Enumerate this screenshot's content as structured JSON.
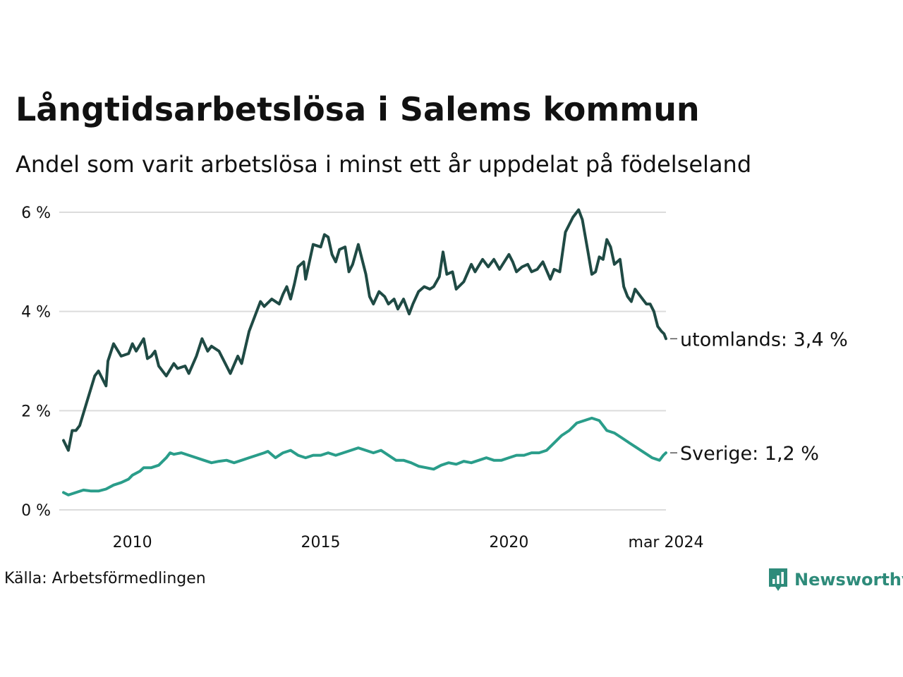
{
  "chart_data": {
    "type": "line",
    "title": "Långtidsarbetslösa i Salems kommun",
    "subtitle": "Andel som varit arbetslösa i minst ett år uppdelat på födelseland",
    "xlabel": "",
    "ylabel": "",
    "x_start": 2008.17,
    "x_end": 2024.17,
    "x_ticks": [
      {
        "value": 2010,
        "label": "2010"
      },
      {
        "value": 2015,
        "label": "2015"
      },
      {
        "value": 2020,
        "label": "2020"
      },
      {
        "value": 2024.17,
        "label": "mar 2024"
      }
    ],
    "ylim": [
      0,
      6
    ],
    "y_ticks": [
      {
        "value": 0,
        "label": "0 %"
      },
      {
        "value": 2,
        "label": "2 %"
      },
      {
        "value": 4,
        "label": "4 %"
      },
      {
        "value": 6,
        "label": "6 %"
      }
    ],
    "grid": true,
    "series": [
      {
        "name": "utomlands",
        "end_label": "utomlands: 3,4 %",
        "color": "#1f4a44",
        "points": [
          [
            2008.17,
            1.4
          ],
          [
            2008.3,
            1.2
          ],
          [
            2008.4,
            1.6
          ],
          [
            2008.5,
            1.6
          ],
          [
            2008.6,
            1.7
          ],
          [
            2008.8,
            2.2
          ],
          [
            2009.0,
            2.7
          ],
          [
            2009.1,
            2.8
          ],
          [
            2009.3,
            2.5
          ],
          [
            2009.35,
            3.0
          ],
          [
            2009.5,
            3.35
          ],
          [
            2009.7,
            3.1
          ],
          [
            2009.9,
            3.15
          ],
          [
            2010.0,
            3.35
          ],
          [
            2010.1,
            3.2
          ],
          [
            2010.3,
            3.45
          ],
          [
            2010.4,
            3.05
          ],
          [
            2010.5,
            3.1
          ],
          [
            2010.6,
            3.2
          ],
          [
            2010.7,
            2.9
          ],
          [
            2010.9,
            2.7
          ],
          [
            2011.1,
            2.95
          ],
          [
            2011.2,
            2.85
          ],
          [
            2011.4,
            2.9
          ],
          [
            2011.5,
            2.75
          ],
          [
            2011.7,
            3.1
          ],
          [
            2011.85,
            3.45
          ],
          [
            2012.0,
            3.2
          ],
          [
            2012.1,
            3.3
          ],
          [
            2012.3,
            3.2
          ],
          [
            2012.6,
            2.75
          ],
          [
            2012.8,
            3.1
          ],
          [
            2012.9,
            2.95
          ],
          [
            2013.1,
            3.6
          ],
          [
            2013.3,
            4.0
          ],
          [
            2013.4,
            4.2
          ],
          [
            2013.5,
            4.1
          ],
          [
            2013.7,
            4.25
          ],
          [
            2013.9,
            4.15
          ],
          [
            2014.0,
            4.35
          ],
          [
            2014.1,
            4.5
          ],
          [
            2014.2,
            4.25
          ],
          [
            2014.3,
            4.55
          ],
          [
            2014.4,
            4.9
          ],
          [
            2014.55,
            5.0
          ],
          [
            2014.6,
            4.65
          ],
          [
            2014.8,
            5.35
          ],
          [
            2015.0,
            5.3
          ],
          [
            2015.1,
            5.55
          ],
          [
            2015.2,
            5.5
          ],
          [
            2015.3,
            5.15
          ],
          [
            2015.4,
            5.0
          ],
          [
            2015.5,
            5.25
          ],
          [
            2015.65,
            5.3
          ],
          [
            2015.75,
            4.8
          ],
          [
            2015.85,
            4.95
          ],
          [
            2016.0,
            5.35
          ],
          [
            2016.2,
            4.75
          ],
          [
            2016.3,
            4.3
          ],
          [
            2016.4,
            4.15
          ],
          [
            2016.55,
            4.4
          ],
          [
            2016.7,
            4.3
          ],
          [
            2016.8,
            4.15
          ],
          [
            2016.95,
            4.25
          ],
          [
            2017.05,
            4.05
          ],
          [
            2017.2,
            4.25
          ],
          [
            2017.35,
            3.95
          ],
          [
            2017.45,
            4.15
          ],
          [
            2017.6,
            4.4
          ],
          [
            2017.75,
            4.5
          ],
          [
            2017.9,
            4.45
          ],
          [
            2018.0,
            4.5
          ],
          [
            2018.15,
            4.7
          ],
          [
            2018.25,
            5.2
          ],
          [
            2018.35,
            4.75
          ],
          [
            2018.5,
            4.8
          ],
          [
            2018.6,
            4.45
          ],
          [
            2018.8,
            4.6
          ],
          [
            2019.0,
            4.95
          ],
          [
            2019.1,
            4.8
          ],
          [
            2019.3,
            5.05
          ],
          [
            2019.45,
            4.9
          ],
          [
            2019.6,
            5.05
          ],
          [
            2019.75,
            4.85
          ],
          [
            2020.0,
            5.15
          ],
          [
            2020.1,
            5.0
          ],
          [
            2020.2,
            4.8
          ],
          [
            2020.35,
            4.9
          ],
          [
            2020.5,
            4.95
          ],
          [
            2020.6,
            4.8
          ],
          [
            2020.75,
            4.85
          ],
          [
            2020.9,
            5.0
          ],
          [
            2021.1,
            4.65
          ],
          [
            2021.2,
            4.85
          ],
          [
            2021.35,
            4.8
          ],
          [
            2021.5,
            5.6
          ],
          [
            2021.7,
            5.9
          ],
          [
            2021.85,
            6.05
          ],
          [
            2021.95,
            5.85
          ],
          [
            2022.1,
            5.2
          ],
          [
            2022.2,
            4.75
          ],
          [
            2022.3,
            4.8
          ],
          [
            2022.4,
            5.1
          ],
          [
            2022.5,
            5.05
          ],
          [
            2022.6,
            5.45
          ],
          [
            2022.7,
            5.3
          ],
          [
            2022.8,
            4.95
          ],
          [
            2022.95,
            5.05
          ],
          [
            2023.05,
            4.5
          ],
          [
            2023.15,
            4.3
          ],
          [
            2023.25,
            4.2
          ],
          [
            2023.35,
            4.45
          ],
          [
            2023.5,
            4.3
          ],
          [
            2023.65,
            4.15
          ],
          [
            2023.75,
            4.15
          ],
          [
            2023.85,
            4.0
          ],
          [
            2023.95,
            3.7
          ],
          [
            2024.05,
            3.6
          ],
          [
            2024.12,
            3.55
          ],
          [
            2024.17,
            3.45
          ]
        ]
      },
      {
        "name": "Sverige",
        "end_label": "Sverige: 1,2 %",
        "color": "#2a9d8a",
        "points": [
          [
            2008.17,
            0.35
          ],
          [
            2008.3,
            0.3
          ],
          [
            2008.5,
            0.35
          ],
          [
            2008.7,
            0.4
          ],
          [
            2008.9,
            0.38
          ],
          [
            2009.1,
            0.38
          ],
          [
            2009.3,
            0.42
          ],
          [
            2009.5,
            0.5
          ],
          [
            2009.7,
            0.55
          ],
          [
            2009.9,
            0.62
          ],
          [
            2010.0,
            0.7
          ],
          [
            2010.2,
            0.78
          ],
          [
            2010.3,
            0.85
          ],
          [
            2010.5,
            0.85
          ],
          [
            2010.7,
            0.9
          ],
          [
            2010.9,
            1.05
          ],
          [
            2011.0,
            1.15
          ],
          [
            2011.1,
            1.12
          ],
          [
            2011.3,
            1.15
          ],
          [
            2011.5,
            1.1
          ],
          [
            2011.7,
            1.05
          ],
          [
            2011.9,
            1.0
          ],
          [
            2012.1,
            0.95
          ],
          [
            2012.3,
            0.98
          ],
          [
            2012.5,
            1.0
          ],
          [
            2012.7,
            0.95
          ],
          [
            2012.9,
            1.0
          ],
          [
            2013.1,
            1.05
          ],
          [
            2013.3,
            1.1
          ],
          [
            2013.5,
            1.15
          ],
          [
            2013.6,
            1.18
          ],
          [
            2013.8,
            1.05
          ],
          [
            2014.0,
            1.15
          ],
          [
            2014.2,
            1.2
          ],
          [
            2014.4,
            1.1
          ],
          [
            2014.6,
            1.05
          ],
          [
            2014.8,
            1.1
          ],
          [
            2015.0,
            1.1
          ],
          [
            2015.2,
            1.15
          ],
          [
            2015.4,
            1.1
          ],
          [
            2015.6,
            1.15
          ],
          [
            2015.8,
            1.2
          ],
          [
            2016.0,
            1.25
          ],
          [
            2016.2,
            1.2
          ],
          [
            2016.4,
            1.15
          ],
          [
            2016.6,
            1.2
          ],
          [
            2016.8,
            1.1
          ],
          [
            2017.0,
            1.0
          ],
          [
            2017.2,
            1.0
          ],
          [
            2017.4,
            0.95
          ],
          [
            2017.6,
            0.88
          ],
          [
            2017.8,
            0.85
          ],
          [
            2018.0,
            0.82
          ],
          [
            2018.2,
            0.9
          ],
          [
            2018.4,
            0.95
          ],
          [
            2018.6,
            0.92
          ],
          [
            2018.8,
            0.98
          ],
          [
            2019.0,
            0.95
          ],
          [
            2019.2,
            1.0
          ],
          [
            2019.4,
            1.05
          ],
          [
            2019.6,
            1.0
          ],
          [
            2019.8,
            1.0
          ],
          [
            2020.0,
            1.05
          ],
          [
            2020.2,
            1.1
          ],
          [
            2020.4,
            1.1
          ],
          [
            2020.6,
            1.15
          ],
          [
            2020.8,
            1.15
          ],
          [
            2021.0,
            1.2
          ],
          [
            2021.2,
            1.35
          ],
          [
            2021.4,
            1.5
          ],
          [
            2021.6,
            1.6
          ],
          [
            2021.8,
            1.75
          ],
          [
            2022.0,
            1.8
          ],
          [
            2022.2,
            1.85
          ],
          [
            2022.4,
            1.8
          ],
          [
            2022.6,
            1.6
          ],
          [
            2022.8,
            1.55
          ],
          [
            2023.0,
            1.45
          ],
          [
            2023.2,
            1.35
          ],
          [
            2023.4,
            1.25
          ],
          [
            2023.6,
            1.15
          ],
          [
            2023.8,
            1.05
          ],
          [
            2024.0,
            1.0
          ],
          [
            2024.1,
            1.1
          ],
          [
            2024.17,
            1.15
          ]
        ]
      }
    ],
    "source": "Källa: Arbetsförmedlingen"
  },
  "brand": {
    "name": "Newsworthy",
    "icon": "newsworthy-logo-icon",
    "color": "#2e8b7a"
  }
}
